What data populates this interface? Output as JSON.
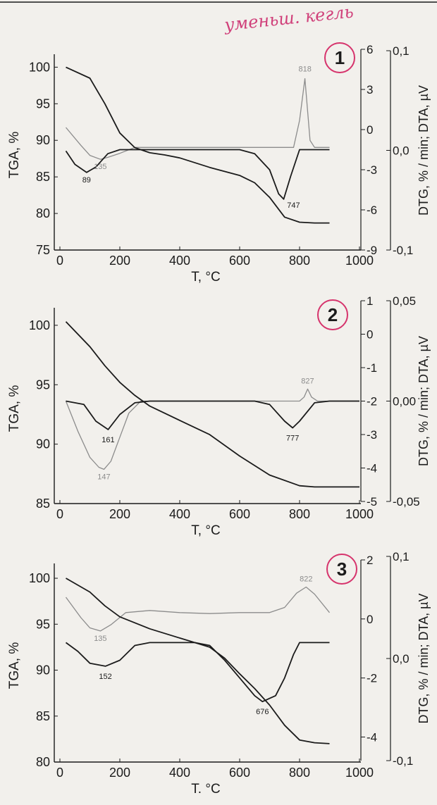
{
  "annotation": {
    "text": "уменьш. кегль"
  },
  "colors": {
    "ink": "#1b1b1b",
    "gray": "#8c8c8c",
    "marker": "#d6336c",
    "paper": "#f2f0ec"
  },
  "chart_data": [
    {
      "panel_label": "1",
      "type": "line",
      "xlabel": "T, °C",
      "ylabel_left": "TGA, %",
      "ylabel_right": "DTG, % / min; DTA, µV",
      "xlim": [
        0,
        1000
      ],
      "x_ticks": [
        "0",
        "200",
        "400",
        "600",
        "800",
        "1000"
      ],
      "tga": {
        "ylim": [
          75,
          101
        ],
        "ticks": [
          "75",
          "80",
          "85",
          "90",
          "95",
          "100"
        ],
        "x": [
          20,
          100,
          150,
          200,
          250,
          300,
          350,
          400,
          500,
          600,
          650,
          700,
          750,
          800,
          850,
          900
        ],
        "y": [
          100,
          98.5,
          95,
          91,
          89,
          88.3,
          88,
          87.6,
          86.3,
          85.2,
          84.2,
          82.2,
          79.5,
          78.8,
          78.7,
          78.7
        ]
      },
      "dtg": {
        "ylim": [
          -9,
          6
        ],
        "ticks": [
          "-9",
          "-6",
          "-3",
          "0",
          "3",
          "6"
        ],
        "x": [
          20,
          50,
          89,
          120,
          160,
          200,
          300,
          400,
          500,
          600,
          650,
          700,
          730,
          747,
          770,
          800,
          850,
          900
        ],
        "y": [
          -1.6,
          -2.6,
          -3.2,
          -2.8,
          -1.8,
          -1.5,
          -1.5,
          -1.5,
          -1.5,
          -1.5,
          -1.8,
          -3.0,
          -4.8,
          -5.2,
          -3.5,
          -1.5,
          -1.5,
          -1.5
        ]
      },
      "dta": {
        "ylim": [
          -0.1,
          0.1
        ],
        "ticks": [
          "-0,1",
          "0,0",
          "0,1"
        ],
        "x": [
          20,
          70,
          100,
          135,
          160,
          200,
          250,
          300,
          400,
          500,
          600,
          700,
          780,
          800,
          818,
          835,
          850,
          900
        ],
        "y": [
          0.023,
          0.005,
          -0.005,
          -0.009,
          -0.007,
          -0.003,
          0.003,
          0.003,
          0.003,
          0.003,
          0.003,
          0.003,
          0.003,
          0.03,
          0.072,
          0.01,
          0.003,
          0.003
        ]
      },
      "annotations": [
        "818",
        "135",
        "89",
        "747"
      ]
    },
    {
      "panel_label": "2",
      "type": "line",
      "xlabel": "T, °C",
      "ylabel_left": "TGA, %",
      "ylabel_right": "DTG, % / min; DTA, µV",
      "xlim": [
        0,
        1000
      ],
      "x_ticks": [
        "0",
        "200",
        "400",
        "600",
        "800",
        "1000"
      ],
      "tga": {
        "ylim": [
          85,
          101
        ],
        "ticks": [
          "85",
          "90",
          "95",
          "100"
        ],
        "x": [
          20,
          100,
          150,
          200,
          250,
          300,
          400,
          500,
          600,
          700,
          800,
          850,
          900,
          1000
        ],
        "y": [
          100.3,
          98.2,
          96.6,
          95.2,
          94.1,
          93.2,
          92,
          90.8,
          89,
          87.4,
          86.5,
          86.4,
          86.4,
          86.4
        ],
        "cut": "top"
      },
      "dtg": {
        "ylim": [
          -5,
          1
        ],
        "ticks": [
          "-5",
          "-4",
          "-3",
          "-2",
          "-1",
          "0",
          "1"
        ],
        "x": [
          20,
          80,
          120,
          161,
          200,
          250,
          300,
          400,
          500,
          600,
          650,
          700,
          750,
          777,
          800,
          850,
          900,
          1000
        ],
        "y": [
          -2,
          -2.1,
          -2.6,
          -2.85,
          -2.4,
          -2.05,
          -2,
          -2,
          -2,
          -2,
          -2,
          -2.1,
          -2.6,
          -2.8,
          -2.6,
          -2.05,
          -2,
          -2
        ]
      },
      "dta": {
        "ylim": [
          -0.05,
          0.05
        ],
        "ticks": [
          "-0,05",
          "0,00",
          "0,05"
        ],
        "x": [
          20,
          60,
          100,
          130,
          147,
          170,
          200,
          230,
          270,
          300,
          400,
          500,
          600,
          700,
          800,
          815,
          827,
          840,
          860,
          900,
          1000
        ],
        "y": [
          0.0,
          -0.015,
          -0.028,
          -0.033,
          -0.034,
          -0.03,
          -0.018,
          -0.006,
          0.0,
          0.0,
          0.0,
          0.0,
          0.0,
          0.0,
          0.0,
          0.002,
          0.006,
          0.002,
          0.0,
          0.0,
          0.0
        ]
      },
      "annotations": [
        "827",
        "147",
        "161",
        "777"
      ]
    },
    {
      "panel_label": "3",
      "type": "line",
      "xlabel": "T. °C",
      "ylabel_left": "TGA, %",
      "ylabel_right": "DTG, % / min; DTA, µV",
      "xlim": [
        0,
        1000
      ],
      "x_ticks": [
        "0",
        "200",
        "400",
        "600",
        "800",
        "1000"
      ],
      "tga": {
        "ylim": [
          80,
          101
        ],
        "ticks": [
          "80",
          "85",
          "90",
          "95",
          "100"
        ],
        "x": [
          20,
          100,
          150,
          200,
          300,
          400,
          500,
          550,
          600,
          650,
          700,
          750,
          800,
          850,
          900
        ],
        "y": [
          100,
          98.5,
          97,
          95.8,
          94.5,
          93.5,
          92.5,
          91.3,
          89.6,
          88,
          86.2,
          84,
          82.4,
          82.1,
          82
        ]
      },
      "dtg": {
        "ylim": [
          -4.8,
          2
        ],
        "ticks": [
          "-4",
          "-2",
          "0",
          "2"
        ],
        "x": [
          20,
          60,
          100,
          152,
          200,
          250,
          300,
          400,
          450,
          500,
          550,
          600,
          650,
          676,
          720,
          750,
          780,
          800,
          850,
          900
        ],
        "y": [
          -0.8,
          -1.1,
          -1.5,
          -1.6,
          -1.4,
          -0.9,
          -0.8,
          -0.8,
          -0.8,
          -0.9,
          -1.4,
          -2.0,
          -2.6,
          -2.8,
          -2.6,
          -2.0,
          -1.2,
          -0.8,
          -0.8,
          -0.8
        ]
      },
      "dta": {
        "ylim": [
          -0.1,
          0.1
        ],
        "ticks": [
          "-0,1",
          "0,0",
          "0,1"
        ],
        "x": [
          20,
          70,
          100,
          135,
          170,
          220,
          300,
          400,
          500,
          600,
          650,
          700,
          750,
          790,
          822,
          850,
          900
        ],
        "y": [
          0.06,
          0.04,
          0.03,
          0.027,
          0.033,
          0.045,
          0.047,
          0.045,
          0.044,
          0.045,
          0.045,
          0.045,
          0.05,
          0.064,
          0.07,
          0.063,
          0.045
        ]
      },
      "annotations": [
        "822",
        "135",
        "152",
        "676"
      ]
    }
  ]
}
